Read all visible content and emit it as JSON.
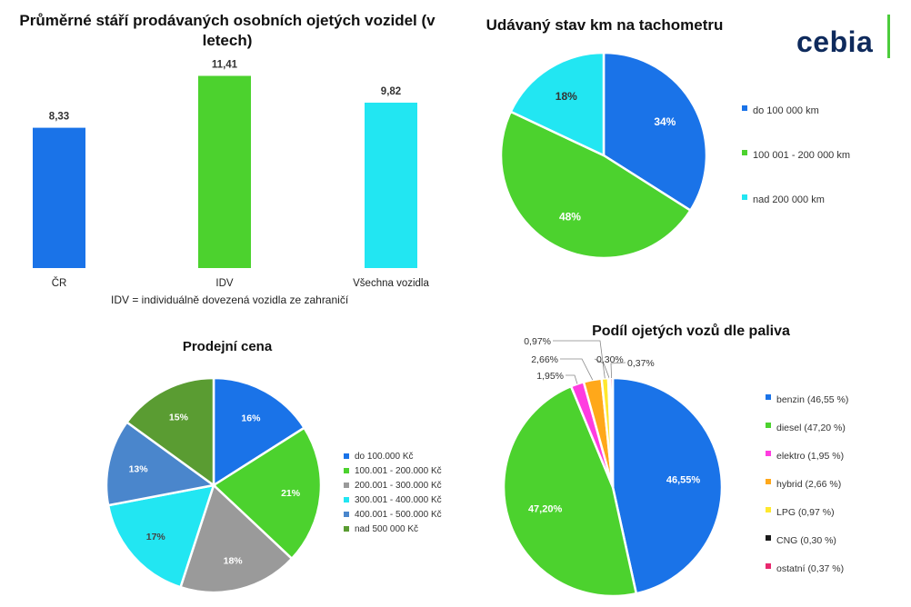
{
  "logo_text": "cebia",
  "note": "IDV = individuálně dovezená vozidla ze zahraničí",
  "chart_data": [
    {
      "type": "bar",
      "title": "Průměrné stáří prodávaných osobních ojetých vozidel (v letech)",
      "categories": [
        "ČR",
        "IDV",
        "Všechna vozidla"
      ],
      "values": [
        8.33,
        11.41,
        9.82
      ],
      "value_labels": [
        "8,33",
        "11,41",
        "9,82"
      ],
      "colors": [
        "#1a73e8",
        "#4cd22e",
        "#22e6f2"
      ]
    },
    {
      "type": "pie",
      "title": "Udávaný stav km na tachometru",
      "categories": [
        "do 100 000 km",
        "100 001 - 200 000 km",
        "nad 200 000 km"
      ],
      "values": [
        34,
        48,
        18
      ],
      "value_labels": [
        "34%",
        "48%",
        "18%"
      ],
      "colors": [
        "#1a73e8",
        "#4cd22e",
        "#22e6f2"
      ],
      "legend": "right"
    },
    {
      "type": "pie",
      "title": "Prodejní cena",
      "categories": [
        "do 100.000 Kč",
        "100.001 - 200.000 Kč",
        "200.001 - 300.000 Kč",
        "300.001 - 400.000 Kč",
        "400.001 - 500.000 Kč",
        "nad 500 000 Kč"
      ],
      "values": [
        16,
        21,
        18,
        17,
        13,
        15
      ],
      "value_labels": [
        "16%",
        "21%",
        "18%",
        "17%",
        "13%",
        "15%"
      ],
      "colors": [
        "#1a73e8",
        "#4cd22e",
        "#9a9a9a",
        "#22e6f2",
        "#4a86cc",
        "#5a9c32"
      ],
      "legend": "right"
    },
    {
      "type": "pie",
      "title": "Podíl ojetých vozů dle paliva",
      "categories": [
        "benzin (46,55 %)",
        "diesel (47,20 %)",
        "elektro (1,95 %)",
        "hybrid (2,66 %)",
        "LPG (0,97 %)",
        "CNG (0,30 %)",
        "ostatní (0,37 %)"
      ],
      "values": [
        46.55,
        47.2,
        1.95,
        2.66,
        0.97,
        0.3,
        0.37
      ],
      "value_labels": [
        "46,55%",
        "47,20%",
        "1,95%",
        "2,66%",
        "0,97%",
        "0,30%",
        "0,37%"
      ],
      "colors": [
        "#1a73e8",
        "#4cd22e",
        "#ff3ce0",
        "#ffa81a",
        "#ffe82e",
        "#1a1a1a",
        "#e8286e"
      ],
      "legend": "right"
    }
  ]
}
